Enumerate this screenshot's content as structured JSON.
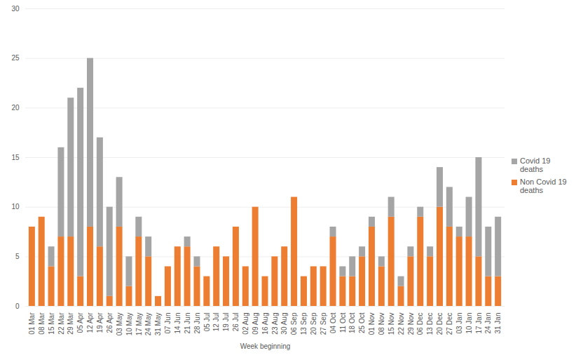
{
  "chart_data": {
    "type": "bar",
    "stacked": true,
    "x_label": "Week beginning",
    "categories": [
      "01 Mar",
      "08 Mar",
      "15 Mar",
      "22 Mar",
      "29 Mar",
      "05 Apr",
      "12 Apr",
      "19 Apr",
      "26 Apr",
      "03 May",
      "10 May",
      "17 May",
      "24 May",
      "31 May",
      "07 Jun",
      "14 Jun",
      "21 Jun",
      "28 Jun",
      "05 Jul",
      "12 Jul",
      "19 Jul",
      "26 Jul",
      "02 Aug",
      "09 Aug",
      "16 Aug",
      "23 Aug",
      "30 Aug",
      "06 Sep",
      "13 Sep",
      "20 Sep",
      "27 Sep",
      "04 Oct",
      "11 Oct",
      "18 Oct",
      "25 Oct",
      "01 Nov",
      "08 Nov",
      "15 Nov",
      "22 Nov",
      "29 Nov",
      "06 Dec",
      "13 Dec",
      "20 Dec",
      "27 Dec",
      "03 Jan",
      "10 Jan",
      "17 Jan",
      "24 Jan",
      "31 Jan"
    ],
    "series": [
      {
        "name": "Non Covid 19 deaths",
        "color": "#ed7d31",
        "values": [
          8,
          9,
          4,
          7,
          7,
          3,
          8,
          6,
          1,
          8,
          2,
          7,
          5,
          1,
          4,
          6,
          6,
          4,
          3,
          6,
          5,
          8,
          4,
          10,
          3,
          5,
          6,
          11,
          3,
          4,
          4,
          7,
          3,
          3,
          5,
          8,
          4,
          9,
          2,
          5,
          9,
          5,
          10,
          8,
          7,
          7,
          5,
          3,
          3
        ]
      },
      {
        "name": "Covid 19 deaths",
        "color": "#a5a5a5",
        "values": [
          0,
          0,
          2,
          9,
          14,
          19,
          17,
          11,
          9,
          5,
          3,
          2,
          2,
          0,
          0,
          0,
          1,
          1,
          0,
          0,
          0,
          0,
          0,
          0,
          0,
          0,
          0,
          0,
          0,
          0,
          0,
          1,
          1,
          2,
          1,
          1,
          1,
          2,
          1,
          1,
          1,
          1,
          4,
          4,
          1,
          4,
          10,
          5,
          6
        ]
      }
    ],
    "ylim": [
      0,
      30
    ],
    "yticks": [
      0,
      5,
      10,
      15,
      20,
      25,
      30
    ],
    "grid": true,
    "legend": "right"
  }
}
